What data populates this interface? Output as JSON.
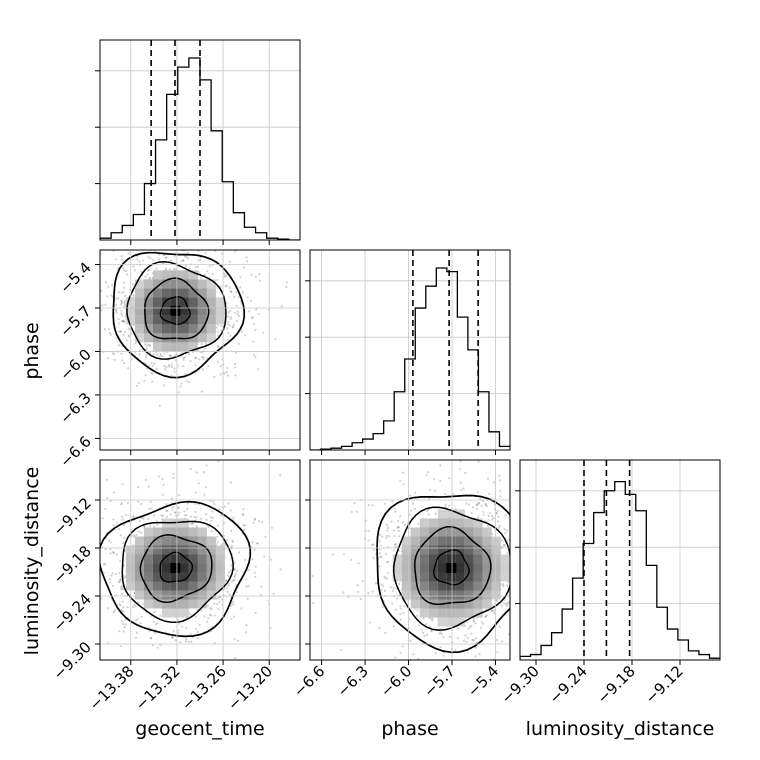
{
  "chart_data": {
    "type": "corner",
    "parameters": [
      "geocent_time",
      "phase",
      "luminosity_distance"
    ],
    "labels": {
      "geocent_time": "geocent_time",
      "phase": "phase",
      "luminosity_distance": "luminosity_distance"
    },
    "ranges": {
      "geocent_time": [
        -13.42,
        -13.16
      ],
      "phase": [
        -6.68,
        -5.3
      ],
      "luminosity_distance": [
        -9.32,
        -9.07
      ]
    },
    "ticks": {
      "geocent_time": {
        "values": [
          -13.38,
          -13.32,
          -13.26,
          -13.2
        ],
        "labels": [
          "−13.38",
          "−13.32",
          "−13.26",
          "−13.20"
        ]
      },
      "phase": {
        "values": [
          -6.6,
          -6.3,
          -6.0,
          -5.7,
          -5.4
        ],
        "labels": [
          "−6.6",
          "−6.3",
          "−6.0",
          "−5.7",
          "−5.4"
        ]
      },
      "luminosity_distance": {
        "values": [
          -9.3,
          -9.24,
          -9.18,
          -9.12
        ],
        "labels": [
          "−9.30",
          "−9.24",
          "−9.18",
          "−9.12"
        ]
      }
    },
    "quantiles": {
      "geocent_time": [
        -13.3535,
        -13.3225,
        -13.29
      ],
      "phase": [
        -5.97,
        -5.72,
        -5.52
      ],
      "luminosity_distance": [
        -9.24,
        -9.212,
        -9.183
      ]
    },
    "histograms": {
      "geocent_time": [
        0.01,
        0.04,
        0.08,
        0.14,
        0.31,
        0.55,
        0.8,
        0.95,
        1.0,
        0.88,
        0.6,
        0.32,
        0.15,
        0.07,
        0.04,
        0.01,
        0.005,
        0.0
      ],
      "phase": [
        0.0,
        0.005,
        0.01,
        0.02,
        0.04,
        0.06,
        0.09,
        0.16,
        0.32,
        0.5,
        0.78,
        0.9,
        1.0,
        0.98,
        0.73,
        0.55,
        0.32,
        0.1,
        0.02
      ],
      "luminosity_distance": [
        0.02,
        0.03,
        0.08,
        0.15,
        0.28,
        0.45,
        0.64,
        0.81,
        0.93,
        0.98,
        0.91,
        0.82,
        0.52,
        0.29,
        0.17,
        0.11,
        0.05,
        0.03,
        0.01
      ]
    },
    "centers": {
      "phase_vs_geocent_time": [
        -13.322,
        -5.72
      ],
      "luminosity_distance_vs_geocent_time": [
        -13.322,
        -9.205
      ],
      "luminosity_distance_vs_phase": [
        -5.705,
        -9.205
      ]
    },
    "grid": true
  }
}
